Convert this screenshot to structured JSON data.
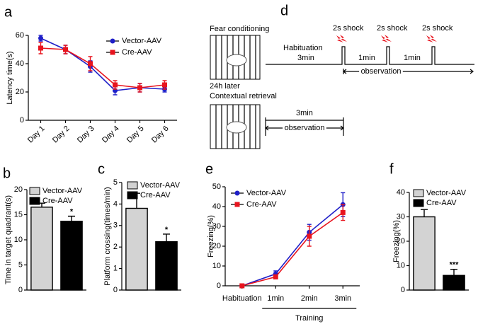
{
  "chart_data": [
    {
      "type": "line",
      "panel": "a",
      "ylabel": "Latency time(s)",
      "categories": [
        "Day 1",
        "Day 2",
        "Day 3",
        "Day 4",
        "Day 5",
        "Day 6"
      ],
      "series": [
        {
          "name": "Vector-AAV",
          "color": "#1f1fc8",
          "marker": "circle",
          "values": [
            58,
            50,
            38,
            21,
            23,
            22
          ],
          "errors": [
            2,
            3,
            4,
            3,
            3,
            2
          ]
        },
        {
          "name": "Cre-AAV",
          "color": "#e8141e",
          "marker": "square",
          "values": [
            51,
            50,
            40,
            25,
            23,
            25
          ],
          "errors": [
            4,
            3,
            5,
            3,
            3,
            3
          ]
        }
      ],
      "ylim": [
        0,
        60
      ],
      "yticks": [
        0,
        20,
        40,
        60
      ]
    },
    {
      "type": "bar",
      "panel": "b",
      "ylabel": "Time in target quadrant(s)",
      "significance": "*",
      "series": [
        {
          "name": "Vector-AAV",
          "color": "#d3d3d3",
          "values": [
            16.5
          ],
          "errors": [
            0.8
          ]
        },
        {
          "name": "Cre-AAV",
          "color": "#000000",
          "values": [
            13.7
          ],
          "errors": [
            1.0
          ]
        }
      ],
      "ylim": [
        0,
        20
      ],
      "yticks": [
        0,
        5,
        10,
        15,
        20
      ]
    },
    {
      "type": "bar",
      "panel": "c",
      "ylabel": "Platform crossing(times/min)",
      "significance": "*",
      "series": [
        {
          "name": "Vector-AAV",
          "color": "#d3d3d3",
          "values": [
            3.8
          ],
          "errors": [
            0.7
          ]
        },
        {
          "name": "Cre-AAV",
          "color": "#000000",
          "values": [
            2.25
          ],
          "errors": [
            0.35
          ]
        }
      ],
      "ylim": [
        0,
        5
      ],
      "yticks": [
        0,
        1,
        2,
        3,
        4,
        5
      ]
    },
    {
      "type": "line",
      "panel": "e",
      "ylabel": "Freezing(%)",
      "xlabel": "Training",
      "categories": [
        "Habituation",
        "1min",
        "2min",
        "3min"
      ],
      "series": [
        {
          "name": "Vector-AAV",
          "color": "#1f1fc8",
          "marker": "circle",
          "values": [
            0,
            6,
            27,
            41
          ],
          "errors": [
            0.5,
            1.5,
            4,
            6
          ]
        },
        {
          "name": "Cre-AAV",
          "color": "#e8141e",
          "marker": "square",
          "values": [
            0,
            4.5,
            25,
            37
          ],
          "errors": [
            0.5,
            1,
            5,
            4
          ]
        }
      ],
      "ylim": [
        0,
        50
      ],
      "yticks": [
        0,
        10,
        20,
        30,
        40,
        50
      ]
    },
    {
      "type": "bar",
      "panel": "f",
      "ylabel": "Freezing(%)",
      "significance": "***",
      "series": [
        {
          "name": "Vector-AAV",
          "color": "#d3d3d3",
          "values": [
            30
          ],
          "errors": [
            3
          ]
        },
        {
          "name": "Cre-AAV",
          "color": "#000000",
          "values": [
            6
          ],
          "errors": [
            2.5
          ]
        }
      ],
      "ylim": [
        0,
        40
      ],
      "yticks": [
        0,
        10,
        20,
        30,
        40
      ]
    }
  ],
  "diagram": {
    "panel": "d",
    "conditioning": {
      "title": "Fear conditioning",
      "habituation": "Habituation",
      "habituation_duration": "3min",
      "shocks": [
        "2s shock",
        "2s shock",
        "2s shock"
      ],
      "intervals": [
        "1min",
        "1min"
      ],
      "observation": "observation"
    },
    "retrieval": {
      "delay": "24h later",
      "title": "Contextual retrieval",
      "duration": "3min",
      "observation": "observation"
    }
  }
}
